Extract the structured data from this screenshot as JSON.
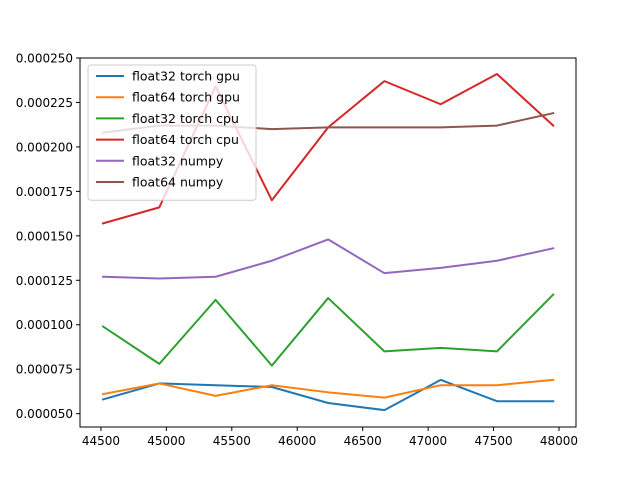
{
  "chart_data": {
    "type": "line",
    "title": "",
    "xlabel": "",
    "ylabel": "",
    "grid": false,
    "legend_position": "top-left",
    "xlim": [
      44340,
      48130
    ],
    "ylim": [
      4.25e-05,
      0.00025
    ],
    "x_ticks": [
      44500,
      45000,
      45500,
      46000,
      46500,
      47000,
      47500,
      48000
    ],
    "x_tick_labels": [
      "44500",
      "45000",
      "45500",
      "46000",
      "46500",
      "47000",
      "47500",
      "48000"
    ],
    "y_ticks": [
      5e-05,
      7.5e-05,
      0.0001,
      0.000125,
      0.00015,
      0.000175,
      0.0002,
      0.000225,
      0.00025
    ],
    "y_tick_labels": [
      "0.000050",
      "0.000075",
      "0.000100",
      "0.000125",
      "0.000150",
      "0.000175",
      "0.000200",
      "0.000225",
      "0.000250"
    ],
    "x": [
      44516,
      44946,
      45376,
      45806,
      46236,
      46666,
      47096,
      47526,
      47956
    ],
    "series": [
      {
        "name": "float32 torch gpu",
        "color": "#1f77b4",
        "values": [
          5.8e-05,
          6.7e-05,
          6.6e-05,
          6.5e-05,
          5.6e-05,
          5.2e-05,
          6.9e-05,
          5.7e-05,
          5.7e-05
        ]
      },
      {
        "name": "float64 torch gpu",
        "color": "#ff7f0e",
        "values": [
          6.1e-05,
          6.7e-05,
          6e-05,
          6.6e-05,
          6.2e-05,
          5.9e-05,
          6.6e-05,
          6.6e-05,
          6.9e-05
        ]
      },
      {
        "name": "float32 torch cpu",
        "color": "#2ca02c",
        "values": [
          9.9e-05,
          7.8e-05,
          0.000114,
          7.7e-05,
          0.000115,
          8.5e-05,
          8.7e-05,
          8.5e-05,
          0.000117
        ]
      },
      {
        "name": "float64 torch cpu",
        "color": "#d62728",
        "values": [
          0.000157,
          0.000166,
          0.000234,
          0.00017,
          0.000211,
          0.000237,
          0.000224,
          0.000241,
          0.000212
        ]
      },
      {
        "name": "float32 numpy",
        "color": "#9467bd",
        "values": [
          0.000127,
          0.000126,
          0.000127,
          0.000136,
          0.000148,
          0.000129,
          0.000132,
          0.000136,
          0.000143
        ]
      },
      {
        "name": "float64 numpy",
        "color": "#8c564b",
        "values": [
          0.000208,
          0.000212,
          0.000212,
          0.00021,
          0.000211,
          0.000211,
          0.000211,
          0.000212,
          0.000219
        ]
      }
    ]
  }
}
